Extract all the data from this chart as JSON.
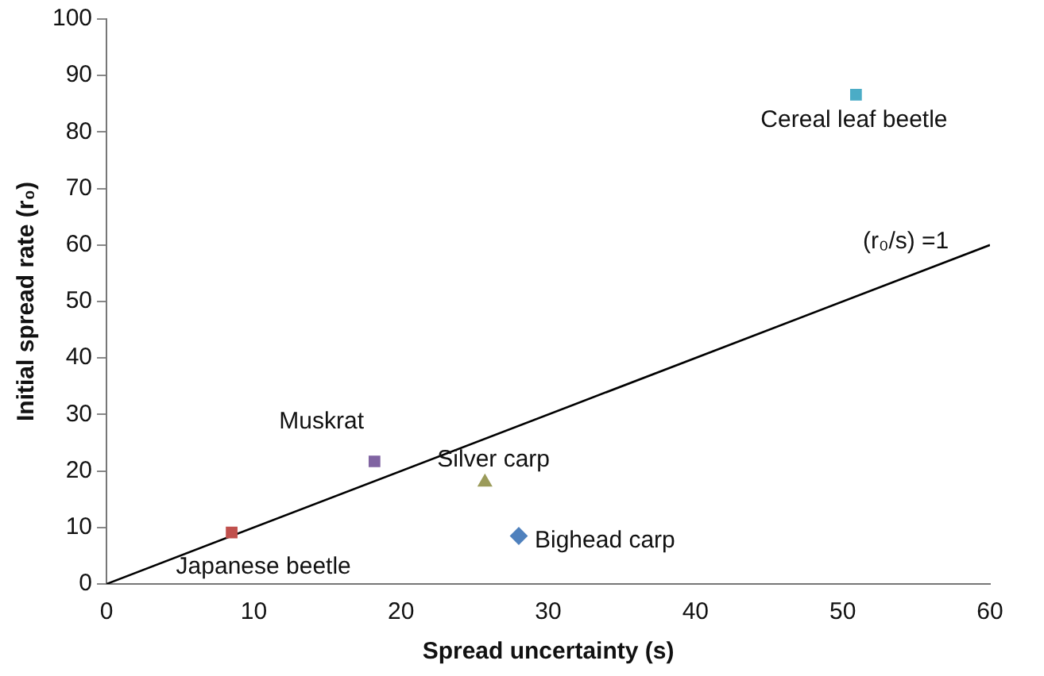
{
  "chart_data": {
    "type": "scatter",
    "xlabel": "Spread uncertainty (s)",
    "ylabel": "Initial spread rate (r₀)",
    "xlim": [
      0,
      60
    ],
    "xticks": [
      0,
      10,
      20,
      30,
      40,
      50,
      60
    ],
    "ylim": [
      0,
      100
    ],
    "yticks": [
      0,
      10,
      20,
      30,
      40,
      50,
      60,
      70,
      80,
      90,
      100
    ],
    "grid": false,
    "legend": false,
    "series": [
      {
        "name": "Japanese beetle",
        "color": "#c0504d",
        "marker": "square",
        "x": [
          8.5
        ],
        "values": [
          9.1
        ]
      },
      {
        "name": "Muskrat",
        "color": "#8064a2",
        "marker": "square",
        "x": [
          18.2
        ],
        "values": [
          21.7
        ]
      },
      {
        "name": "Silver carp",
        "color": "#9b9b5a",
        "marker": "triangle",
        "x": [
          25.7
        ],
        "values": [
          18
        ]
      },
      {
        "name": "Bighead carp",
        "color": "#4f81bd",
        "marker": "diamond",
        "x": [
          28
        ],
        "values": [
          8.5
        ]
      },
      {
        "name": "Cereal leaf beetle",
        "color": "#4bacc6",
        "marker": "square",
        "x": [
          50.9
        ],
        "values": [
          86.6
        ]
      },
      {
        "name": "(r₀/s) =1",
        "type": "line",
        "color": "#000000",
        "marker": "none",
        "x": [
          0,
          60
        ],
        "values": [
          0,
          60
        ]
      }
    ]
  }
}
